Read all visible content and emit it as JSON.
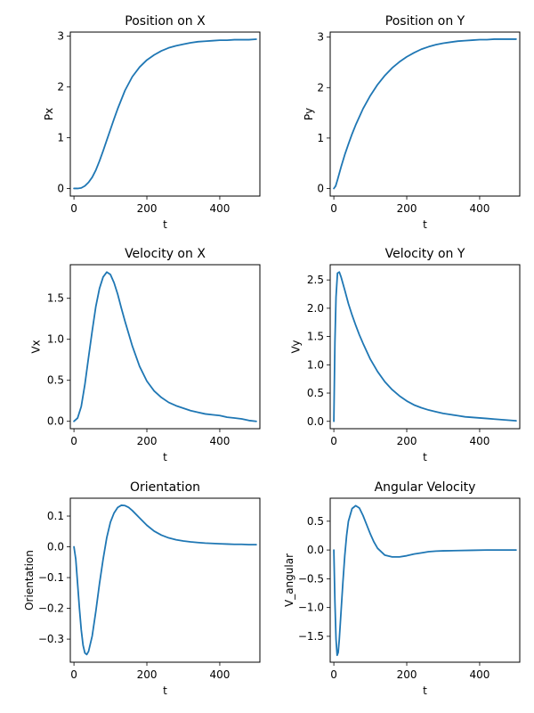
{
  "chart_data": [
    {
      "type": "line",
      "title": "Position on X",
      "xlabel": "t",
      "ylabel": "Px",
      "xlim": [
        -10,
        510
      ],
      "ylim": [
        -0.15,
        3.08
      ],
      "x_ticks": [
        0,
        200,
        400
      ],
      "y_ticks": [
        0,
        1,
        2,
        3
      ],
      "x_tick_labels": [
        "0",
        "200",
        "400"
      ],
      "y_tick_labels": [
        "0",
        "1",
        "2",
        "3"
      ],
      "series": [
        {
          "color": "#1f77b4",
          "x": [
            0,
            10,
            20,
            30,
            40,
            50,
            60,
            70,
            80,
            90,
            100,
            110,
            120,
            140,
            160,
            180,
            200,
            220,
            240,
            260,
            280,
            300,
            320,
            340,
            360,
            380,
            400,
            420,
            440,
            460,
            480,
            500
          ],
          "y": [
            0.0,
            0.0,
            0.01,
            0.05,
            0.12,
            0.22,
            0.36,
            0.54,
            0.74,
            0.95,
            1.16,
            1.37,
            1.57,
            1.93,
            2.2,
            2.39,
            2.53,
            2.63,
            2.71,
            2.77,
            2.81,
            2.84,
            2.87,
            2.89,
            2.9,
            2.91,
            2.92,
            2.92,
            2.93,
            2.93,
            2.93,
            2.94
          ]
        }
      ]
    },
    {
      "type": "line",
      "title": "Position on Y",
      "xlabel": "t",
      "ylabel": "Py",
      "xlim": [
        -10,
        510
      ],
      "ylim": [
        -0.15,
        3.1
      ],
      "x_ticks": [
        0,
        200,
        400
      ],
      "y_ticks": [
        0,
        1,
        2,
        3
      ],
      "x_tick_labels": [
        "0",
        "200",
        "400"
      ],
      "y_tick_labels": [
        "0",
        "1",
        "2",
        "3"
      ],
      "series": [
        {
          "color": "#1f77b4",
          "x": [
            0,
            5,
            10,
            20,
            30,
            40,
            50,
            60,
            80,
            100,
            120,
            140,
            160,
            180,
            200,
            220,
            240,
            260,
            280,
            300,
            320,
            340,
            360,
            380,
            400,
            420,
            440,
            460,
            480,
            500
          ],
          "y": [
            0.0,
            0.05,
            0.17,
            0.43,
            0.67,
            0.88,
            1.08,
            1.26,
            1.58,
            1.84,
            2.06,
            2.24,
            2.39,
            2.51,
            2.61,
            2.69,
            2.76,
            2.81,
            2.85,
            2.88,
            2.9,
            2.92,
            2.93,
            2.94,
            2.95,
            2.95,
            2.96,
            2.96,
            2.96,
            2.96
          ]
        }
      ]
    },
    {
      "type": "line",
      "title": "Velocity on X",
      "xlabel": "t",
      "ylabel": "Vx",
      "xlim": [
        -10,
        510
      ],
      "ylim": [
        -0.09,
        1.91
      ],
      "x_ticks": [
        0,
        200,
        400
      ],
      "y_ticks": [
        0,
        0.5,
        1,
        1.5
      ],
      "x_tick_labels": [
        "0",
        "200",
        "400"
      ],
      "y_tick_labels": [
        "0.0",
        "0.5",
        "1.0",
        "1.5"
      ],
      "series": [
        {
          "color": "#1f77b4",
          "x": [
            0,
            10,
            20,
            30,
            40,
            50,
            60,
            70,
            80,
            90,
            100,
            110,
            120,
            130,
            140,
            160,
            180,
            200,
            220,
            240,
            260,
            280,
            300,
            320,
            340,
            360,
            380,
            400,
            420,
            440,
            460,
            480,
            500
          ],
          "y": [
            0.0,
            0.04,
            0.18,
            0.45,
            0.78,
            1.1,
            1.4,
            1.62,
            1.76,
            1.82,
            1.79,
            1.69,
            1.55,
            1.38,
            1.22,
            0.92,
            0.67,
            0.49,
            0.37,
            0.29,
            0.23,
            0.19,
            0.16,
            0.13,
            0.11,
            0.09,
            0.08,
            0.07,
            0.05,
            0.04,
            0.03,
            0.01,
            0.0
          ]
        }
      ]
    },
    {
      "type": "line",
      "title": "Velocity on Y",
      "xlabel": "t",
      "ylabel": "Vy",
      "xlim": [
        -10,
        510
      ],
      "ylim": [
        -0.13,
        2.77
      ],
      "x_ticks": [
        0,
        200,
        400
      ],
      "y_ticks": [
        0,
        0.5,
        1,
        1.5,
        2,
        2.5
      ],
      "x_tick_labels": [
        "0",
        "200",
        "400"
      ],
      "y_tick_labels": [
        "0.0",
        "0.5",
        "1.0",
        "1.5",
        "2.0",
        "2.5"
      ],
      "series": [
        {
          "color": "#1f77b4",
          "x": [
            0,
            3,
            6,
            10,
            15,
            20,
            30,
            40,
            50,
            60,
            70,
            80,
            100,
            120,
            140,
            160,
            180,
            200,
            220,
            240,
            260,
            280,
            300,
            320,
            340,
            360,
            380,
            400,
            420,
            440,
            460,
            480,
            500
          ],
          "y": [
            0.0,
            1.4,
            2.2,
            2.62,
            2.64,
            2.55,
            2.32,
            2.08,
            1.88,
            1.7,
            1.53,
            1.38,
            1.1,
            0.88,
            0.7,
            0.56,
            0.45,
            0.36,
            0.29,
            0.24,
            0.2,
            0.17,
            0.14,
            0.12,
            0.1,
            0.08,
            0.07,
            0.06,
            0.05,
            0.04,
            0.03,
            0.02,
            0.01
          ]
        }
      ]
    },
    {
      "type": "line",
      "title": "Orientation",
      "xlabel": "t",
      "ylabel": "Orientation",
      "xlim": [
        -10,
        510
      ],
      "ylim": [
        -0.375,
        0.158
      ],
      "x_ticks": [
        0,
        200,
        400
      ],
      "y_ticks": [
        -0.3,
        -0.2,
        -0.1,
        0,
        0.1
      ],
      "x_tick_labels": [
        "0",
        "200",
        "400"
      ],
      "y_tick_labels": [
        "−0.3",
        "−0.2",
        "−0.1",
        "0.0",
        "0.1"
      ],
      "series": [
        {
          "color": "#1f77b4",
          "x": [
            0,
            5,
            10,
            15,
            20,
            25,
            30,
            35,
            40,
            50,
            60,
            70,
            80,
            90,
            100,
            110,
            120,
            130,
            140,
            150,
            160,
            180,
            200,
            220,
            240,
            260,
            280,
            300,
            320,
            340,
            360,
            380,
            400,
            420,
            440,
            460,
            480,
            500
          ],
          "y": [
            0.0,
            -0.04,
            -0.12,
            -0.2,
            -0.27,
            -0.32,
            -0.345,
            -0.35,
            -0.34,
            -0.29,
            -0.21,
            -0.12,
            -0.04,
            0.03,
            0.08,
            0.11,
            0.128,
            0.135,
            0.134,
            0.128,
            0.118,
            0.094,
            0.07,
            0.051,
            0.038,
            0.029,
            0.023,
            0.019,
            0.016,
            0.014,
            0.012,
            0.011,
            0.01,
            0.009,
            0.008,
            0.008,
            0.007,
            0.007
          ]
        }
      ]
    },
    {
      "type": "line",
      "title": "Angular Velocity",
      "xlabel": "t",
      "ylabel": "V_angular",
      "xlim": [
        -10,
        510
      ],
      "ylim": [
        -1.95,
        0.9
      ],
      "x_ticks": [
        0,
        200,
        400
      ],
      "y_ticks": [
        -1.5,
        -1,
        -0.5,
        0,
        0.5
      ],
      "x_tick_labels": [
        "0",
        "200",
        "400"
      ],
      "y_tick_labels": [
        "−1.5",
        "−1.0",
        "−0.5",
        "0.0",
        "0.5"
      ],
      "series": [
        {
          "color": "#1f77b4",
          "x": [
            0,
            3,
            6,
            9,
            12,
            15,
            20,
            25,
            30,
            35,
            40,
            50,
            60,
            70,
            80,
            90,
            100,
            110,
            120,
            140,
            160,
            180,
            200,
            220,
            240,
            260,
            280,
            300,
            340,
            380,
            420,
            460,
            500
          ],
          "y": [
            0.0,
            -0.9,
            -1.55,
            -1.83,
            -1.78,
            -1.55,
            -1.05,
            -0.55,
            -0.1,
            0.25,
            0.5,
            0.72,
            0.77,
            0.73,
            0.6,
            0.44,
            0.28,
            0.14,
            0.03,
            -0.09,
            -0.12,
            -0.12,
            -0.1,
            -0.07,
            -0.05,
            -0.03,
            -0.02,
            -0.015,
            -0.01,
            -0.005,
            0.0,
            0.0,
            0.0
          ]
        }
      ]
    }
  ]
}
